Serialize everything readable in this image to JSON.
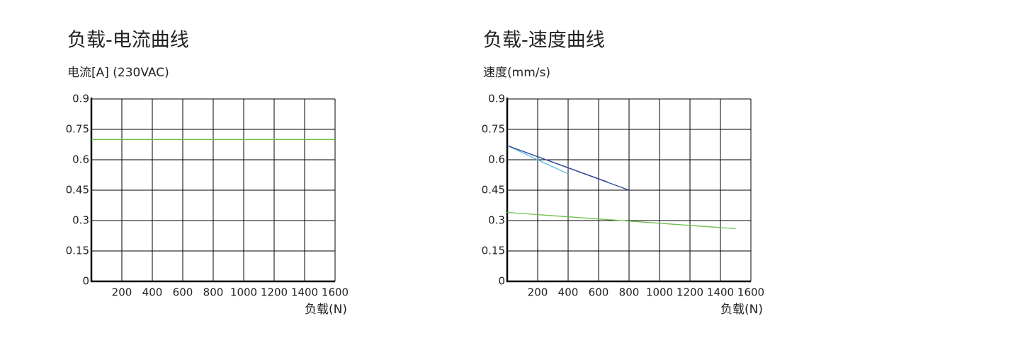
{
  "chart_data": [
    {
      "type": "line",
      "title": "负载-电流曲线",
      "ylabel": "电流[A] (230VAC)",
      "xlabel": "负载(N)",
      "xlim": [
        0,
        1600
      ],
      "xticks": [
        200,
        400,
        600,
        800,
        1000,
        1200,
        1400,
        1600
      ],
      "ylim": [
        0,
        0.9
      ],
      "yticks": [
        0,
        0.15,
        0.3,
        0.45,
        0.6,
        0.75,
        0.9
      ],
      "grid": true,
      "series": [
        {
          "color": "#6fbf4a",
          "x": [
            0,
            1600
          ],
          "values": [
            0.7,
            0.7
          ]
        }
      ]
    },
    {
      "type": "line",
      "title": "负载-速度曲线",
      "ylabel": "速度(mm/s)",
      "xlabel": "负载(N)",
      "xlim": [
        0,
        1600
      ],
      "xticks": [
        200,
        400,
        600,
        800,
        1000,
        1200,
        1400,
        1600
      ],
      "ylim": [
        0,
        0.9
      ],
      "yticks": [
        0,
        0.15,
        0.3,
        0.45,
        0.6,
        0.75,
        0.9
      ],
      "grid": true,
      "series": [
        {
          "color": "#5bc0d8",
          "x": [
            0,
            400
          ],
          "values": [
            0.67,
            0.53
          ]
        },
        {
          "color": "#6a3d9a",
          "x": [
            0,
            660
          ],
          "values": [
            0.67,
            0.49
          ]
        },
        {
          "color": "#2b4c9b",
          "x": [
            0,
            800
          ],
          "values": [
            0.67,
            0.45
          ]
        },
        {
          "color": "#6fbf4a",
          "x": [
            0,
            1500
          ],
          "values": [
            0.34,
            0.26
          ]
        }
      ]
    }
  ]
}
